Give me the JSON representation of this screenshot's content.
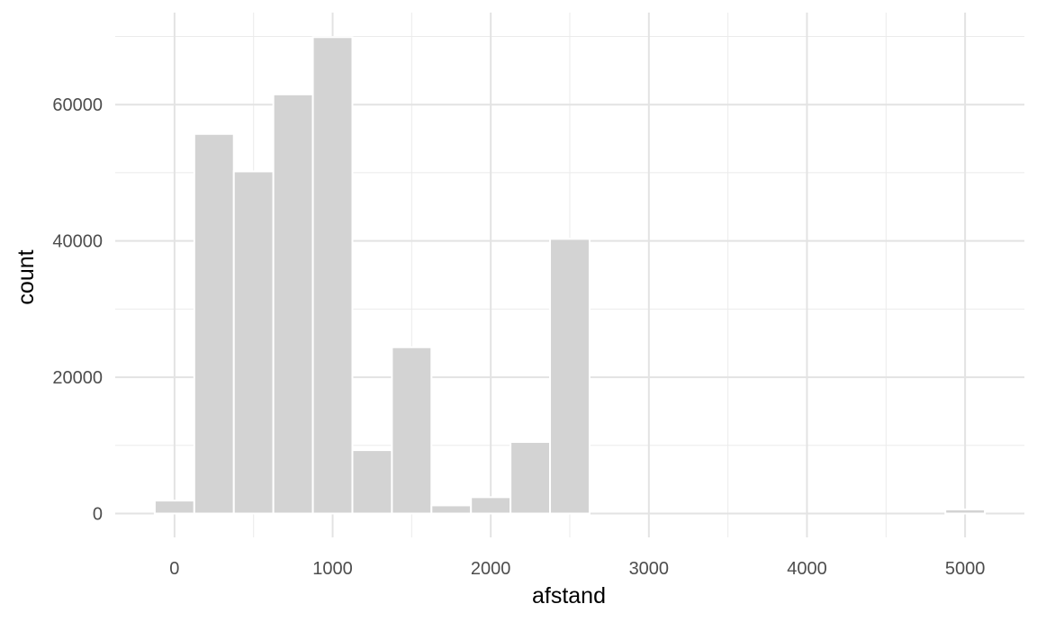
{
  "chart_data": {
    "type": "bar",
    "title": "",
    "xlabel": "afstand",
    "ylabel": "count",
    "xlim": [
      -375,
      5375
    ],
    "ylim": [
      -3500,
      73500
    ],
    "x_ticks": [
      0,
      1000,
      2000,
      3000,
      4000,
      5000
    ],
    "x_tick_labels": [
      "0",
      "1000",
      "2000",
      "3000",
      "4000",
      "5000"
    ],
    "x_minor_ticks": [
      500,
      1500,
      2500,
      3500,
      4500
    ],
    "y_ticks": [
      0,
      20000,
      40000,
      60000
    ],
    "y_tick_labels": [
      "0",
      "20000",
      "40000",
      "60000"
    ],
    "y_minor_ticks": [
      10000,
      30000,
      50000,
      70000
    ],
    "grid": true,
    "bin_width": 250,
    "bar_color": "#d3d3d3",
    "bar_outline": "#ffffff",
    "bins": [
      {
        "x0": -125,
        "x1": 125,
        "value": 1900
      },
      {
        "x0": 125,
        "x1": 375,
        "value": 55700
      },
      {
        "x0": 375,
        "x1": 625,
        "value": 50200
      },
      {
        "x0": 625,
        "x1": 875,
        "value": 61500
      },
      {
        "x0": 875,
        "x1": 1125,
        "value": 69900
      },
      {
        "x0": 1125,
        "x1": 1375,
        "value": 9300
      },
      {
        "x0": 1375,
        "x1": 1625,
        "value": 24400
      },
      {
        "x0": 1625,
        "x1": 1875,
        "value": 1200
      },
      {
        "x0": 1875,
        "x1": 2125,
        "value": 2400
      },
      {
        "x0": 2125,
        "x1": 2375,
        "value": 10500
      },
      {
        "x0": 2375,
        "x1": 2625,
        "value": 40300
      },
      {
        "x0": 2625,
        "x1": 2875,
        "value": 0
      },
      {
        "x0": 2875,
        "x1": 3125,
        "value": 0
      },
      {
        "x0": 3125,
        "x1": 3375,
        "value": 0
      },
      {
        "x0": 3375,
        "x1": 3625,
        "value": 0
      },
      {
        "x0": 3625,
        "x1": 3875,
        "value": 0
      },
      {
        "x0": 3875,
        "x1": 4125,
        "value": 0
      },
      {
        "x0": 4125,
        "x1": 4375,
        "value": 0
      },
      {
        "x0": 4375,
        "x1": 4625,
        "value": 0
      },
      {
        "x0": 4625,
        "x1": 4875,
        "value": 0
      },
      {
        "x0": 4875,
        "x1": 5125,
        "value": 600
      },
      {
        "x0": 5125,
        "x1": 5375,
        "value": 0
      }
    ]
  }
}
